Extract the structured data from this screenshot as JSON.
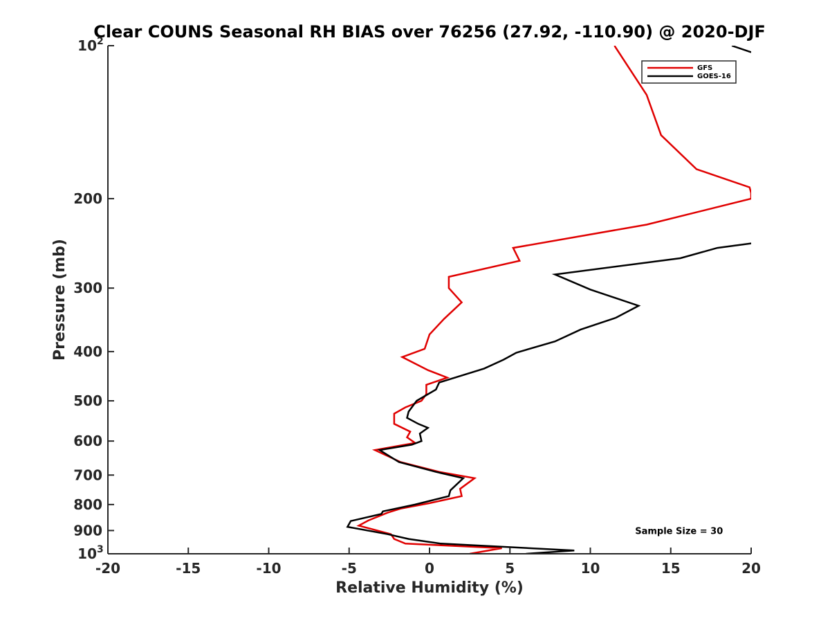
{
  "chart_data": {
    "type": "line",
    "title": "Clear COUNS Seasonal RH BIAS over 76256 (27.92, -110.90) @ 2020-DJF",
    "xlabel": "Relative Humidity (%)",
    "ylabel": "Pressure (mb)",
    "xlim": [
      -20,
      20
    ],
    "ylim": [
      100,
      1000
    ],
    "yscale": "log",
    "y_reversed": true,
    "grid": false,
    "legend_position": "top-right",
    "x_ticks": [
      "-20",
      "-15",
      "-10",
      "-5",
      "0",
      "5",
      "10",
      "15",
      "20"
    ],
    "y_ticks": [
      {
        "value": 100,
        "base": "10",
        "exp": "2"
      },
      {
        "value": 200,
        "base": "200",
        "exp": ""
      },
      {
        "value": 300,
        "base": "300",
        "exp": ""
      },
      {
        "value": 400,
        "base": "400",
        "exp": ""
      },
      {
        "value": 500,
        "base": "500",
        "exp": ""
      },
      {
        "value": 600,
        "base": "600",
        "exp": ""
      },
      {
        "value": 700,
        "base": "700",
        "exp": ""
      },
      {
        "value": 800,
        "base": "800",
        "exp": ""
      },
      {
        "value": 900,
        "base": "900",
        "exp": ""
      },
      {
        "value": 1000,
        "base": "10",
        "exp": "3"
      }
    ],
    "series": [
      {
        "name": "GFS",
        "color": "#e00000",
        "points": [
          [
            11.5,
            100
          ],
          [
            13.5,
            125
          ],
          [
            14.4,
            150
          ],
          [
            16.6,
            175
          ],
          [
            19.9,
            190
          ],
          [
            20.0,
            195
          ],
          [
            20.0,
            200
          ],
          [
            13.5,
            225
          ],
          [
            5.2,
            250
          ],
          [
            5.6,
            265
          ],
          [
            1.2,
            285
          ],
          [
            1.2,
            300
          ],
          [
            2.0,
            320
          ],
          [
            0.9,
            345
          ],
          [
            0.0,
            370
          ],
          [
            -0.3,
            395
          ],
          [
            -1.7,
            410
          ],
          [
            -0.1,
            435
          ],
          [
            1.1,
            450
          ],
          [
            -0.2,
            465
          ],
          [
            -0.2,
            485
          ],
          [
            -0.5,
            500
          ],
          [
            -1.5,
            515
          ],
          [
            -2.2,
            530
          ],
          [
            -2.2,
            555
          ],
          [
            -1.2,
            575
          ],
          [
            -1.4,
            590
          ],
          [
            -0.9,
            605
          ],
          [
            -3.4,
            625
          ],
          [
            -1.8,
            660
          ],
          [
            0.6,
            690
          ],
          [
            2.8,
            710
          ],
          [
            1.9,
            745
          ],
          [
            2.0,
            770
          ],
          [
            0.0,
            795
          ],
          [
            -1.8,
            815
          ],
          [
            -2.6,
            830
          ],
          [
            -3.8,
            860
          ],
          [
            -4.4,
            880
          ],
          [
            -2.4,
            915
          ],
          [
            -2.2,
            935
          ],
          [
            -1.5,
            955
          ],
          [
            4.5,
            975
          ],
          [
            2.5,
            1000
          ]
        ]
      },
      {
        "name": "GOES-16",
        "color": "#000000",
        "points": [
          [
            20.0,
            245
          ],
          [
            17.9,
            250
          ],
          [
            15.6,
            262
          ],
          [
            7.8,
            282
          ],
          [
            10.0,
            302
          ],
          [
            13.0,
            325
          ],
          [
            11.6,
            343
          ],
          [
            9.4,
            362
          ],
          [
            7.8,
            382
          ],
          [
            5.4,
            402
          ],
          [
            4.6,
            415
          ],
          [
            3.4,
            432
          ],
          [
            0.6,
            460
          ],
          [
            0.4,
            475
          ],
          [
            -0.8,
            500
          ],
          [
            -1.3,
            525
          ],
          [
            -1.4,
            540
          ],
          [
            -0.7,
            555
          ],
          [
            -0.1,
            565
          ],
          [
            -0.6,
            580
          ],
          [
            -0.5,
            600
          ],
          [
            -1.1,
            610
          ],
          [
            -3.1,
            625
          ],
          [
            -1.9,
            660
          ],
          [
            0.4,
            690
          ],
          [
            2.1,
            710
          ],
          [
            1.3,
            750
          ],
          [
            1.2,
            770
          ],
          [
            -0.9,
            800
          ],
          [
            -2.9,
            825
          ],
          [
            -3.0,
            835
          ],
          [
            -4.9,
            862
          ],
          [
            -5.1,
            885
          ],
          [
            -2.6,
            915
          ],
          [
            -1.3,
            935
          ],
          [
            0.7,
            955
          ],
          [
            9.0,
            985
          ],
          [
            6.0,
            1000
          ]
        ]
      },
      {
        "name": "GOES-16 (upper segment)",
        "color": "#000000",
        "in_legend": false,
        "points": [
          [
            18.8,
            100
          ],
          [
            20.0,
            103
          ]
        ]
      }
    ],
    "annotations": [
      {
        "text": "Sample Size = 30",
        "x": 15,
        "y": 900
      }
    ]
  }
}
